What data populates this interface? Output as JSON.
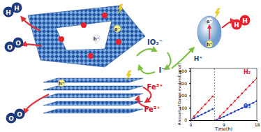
{
  "labels": {
    "io3": "IO₃⁻",
    "iodide": "I⁻",
    "fe3": "Fe³⁺",
    "fe2": "Fe²⁺",
    "proton": "H⁺"
  },
  "charges": [
    "e⁻",
    "h⁺",
    "h⁺",
    "e⁻",
    "h⁺"
  ],
  "molecules": [
    [
      "H",
      "H"
    ],
    [
      "O",
      "O"
    ],
    [
      "O",
      "O"
    ],
    [
      "H",
      "H"
    ]
  ],
  "chart_data": {
    "type": "line",
    "x_label": "Time(h)",
    "y_label": "Amount of Gases evolved(μmol)",
    "x": [
      0,
      1,
      2,
      3,
      4,
      5,
      6,
      6.5,
      7,
      8,
      9,
      10,
      11,
      12,
      13,
      14,
      15,
      16,
      17,
      18
    ],
    "series": [
      {
        "name": "H₂",
        "color": "#e8202a",
        "marker": "circle",
        "values": [
          0,
          32,
          64,
          96,
          128,
          160,
          192,
          null,
          0,
          31,
          62,
          93,
          124,
          155,
          186,
          217,
          248,
          279,
          310,
          341
        ]
      },
      {
        "name": "O₂",
        "color": "#1f3fbf",
        "marker": "circle",
        "values": [
          0,
          15,
          30,
          45,
          60,
          75,
          90,
          null,
          0,
          14,
          28,
          42,
          56,
          70,
          84,
          98,
          112,
          126,
          140,
          156
        ]
      }
    ],
    "vlines": [
      6.5
    ],
    "xlim": [
      0,
      18
    ],
    "xticks": [
      0,
      9,
      18
    ],
    "ylim": [
      0,
      420
    ],
    "yticks": [
      0,
      100,
      200,
      300,
      400
    ],
    "grid": false
  }
}
